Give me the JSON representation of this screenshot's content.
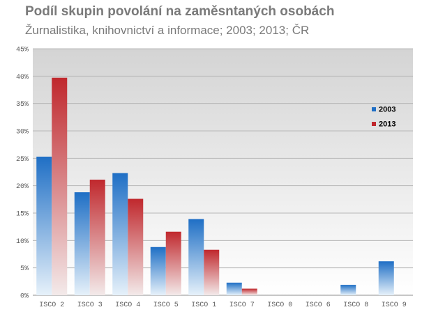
{
  "title": "Podíl skupin povolání na zaměsntaných osobách",
  "subtitle": "Žurnalistika, knihovnictví a informace;  2003; 2013; ČR",
  "chart_data": {
    "type": "bar",
    "title": "Podíl skupin povolání na zaměsntaných osobách",
    "subtitle": "Žurnalistika, knihovnictví a informace;  2003; 2013; ČR",
    "xlabel": "",
    "ylabel": "",
    "ylim": [
      0,
      45
    ],
    "y_ticks": [
      "0%",
      "5%",
      "10%",
      "15%",
      "20%",
      "25%",
      "30%",
      "35%",
      "40%",
      "45%"
    ],
    "y_tick_values": [
      0,
      5,
      10,
      15,
      20,
      25,
      30,
      35,
      40,
      45
    ],
    "grid": true,
    "legend_position": "right",
    "categories": [
      "ISCO 2",
      "ISCO 3",
      "ISCO 4",
      "ISCO 5",
      "ISCO 1",
      "ISCO 7",
      "ISCO 0",
      "ISCO 6",
      "ISCO 8",
      "ISCO 9"
    ],
    "series": [
      {
        "name": "2003",
        "color": "#1f6fc5",
        "values": [
          25.3,
          18.8,
          22.3,
          8.8,
          13.9,
          2.3,
          0,
          0,
          1.9,
          6.2
        ]
      },
      {
        "name": "2013",
        "color": "#c0282d",
        "values": [
          39.7,
          21.1,
          17.6,
          11.6,
          8.3,
          1.2,
          0,
          0,
          0,
          0
        ]
      }
    ]
  }
}
